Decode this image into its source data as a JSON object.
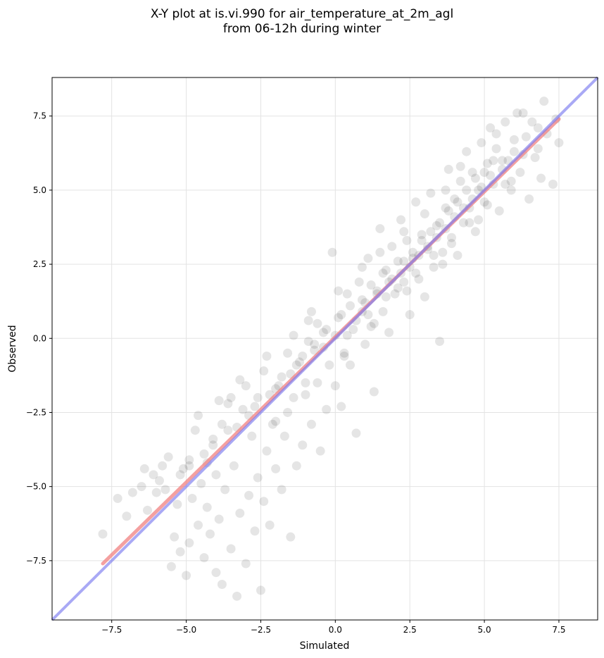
{
  "chart_data": {
    "type": "scatter",
    "title_line1": "X-Y plot at is.vi.990 for air_temperature_at_2m_agl",
    "title_line2": "from 06-12h during winter",
    "xlabel": "Simulated",
    "ylabel": "Observed",
    "xlim": [
      -9.5,
      8.8
    ],
    "ylim": [
      -9.5,
      8.8
    ],
    "xticks": [
      -7.5,
      -5.0,
      -2.5,
      0.0,
      2.5,
      5.0,
      7.5
    ],
    "yticks": [
      -7.5,
      -5.0,
      -2.5,
      0.0,
      2.5,
      5.0,
      7.5
    ],
    "xtick_labels": [
      "−7.5",
      "−5.0",
      "−2.5",
      "0.0",
      "2.5",
      "5.0",
      "7.5"
    ],
    "ytick_labels": [
      "−7.5",
      "−5.0",
      "−2.5",
      "0.0",
      "2.5",
      "5.0",
      "7.5"
    ],
    "grid": true,
    "colors": {
      "points": "#000000",
      "fit_line": "#f08080",
      "identity_line": "#7b7bf0"
    },
    "fit_line": {
      "x": [
        -7.8,
        7.5
      ],
      "y": [
        -7.6,
        7.4
      ]
    },
    "identity_line": {
      "x": [
        -9.5,
        8.8
      ],
      "y": [
        -9.5,
        8.8
      ]
    },
    "points": [
      [
        -7.8,
        -6.6
      ],
      [
        -7.3,
        -5.4
      ],
      [
        -7.0,
        -6.0
      ],
      [
        -6.8,
        -5.2
      ],
      [
        -6.5,
        -5.0
      ],
      [
        -6.4,
        -4.4
      ],
      [
        -6.3,
        -5.8
      ],
      [
        -6.0,
        -5.2
      ],
      [
        -5.9,
        -4.8
      ],
      [
        -5.8,
        -4.3
      ],
      [
        -5.7,
        -5.1
      ],
      [
        -5.6,
        -4.0
      ],
      [
        -5.5,
        -7.7
      ],
      [
        -5.4,
        -6.7
      ],
      [
        -5.3,
        -5.6
      ],
      [
        -5.2,
        -7.2
      ],
      [
        -5.1,
        -4.4
      ],
      [
        -5.0,
        -8.0
      ],
      [
        -4.9,
        -4.1
      ],
      [
        -4.9,
        -6.9
      ],
      [
        -4.8,
        -5.4
      ],
      [
        -4.7,
        -3.1
      ],
      [
        -4.6,
        -6.3
      ],
      [
        -4.5,
        -4.9
      ],
      [
        -4.4,
        -7.4
      ],
      [
        -4.3,
        -4.2
      ],
      [
        -4.3,
        -5.7
      ],
      [
        -4.2,
        -6.6
      ],
      [
        -4.1,
        -3.6
      ],
      [
        -4.0,
        -7.9
      ],
      [
        -4.0,
        -4.6
      ],
      [
        -3.9,
        -6.1
      ],
      [
        -3.8,
        -8.3
      ],
      [
        -3.7,
        -5.1
      ],
      [
        -3.6,
        -3.1
      ],
      [
        -3.5,
        -7.1
      ],
      [
        -3.4,
        -4.3
      ],
      [
        -3.3,
        -8.7
      ],
      [
        -3.2,
        -5.9
      ],
      [
        -3.1,
        -2.4
      ],
      [
        -3.0,
        -7.6
      ],
      [
        -2.9,
        -5.3
      ],
      [
        -2.8,
        -3.3
      ],
      [
        -2.7,
        -6.5
      ],
      [
        -2.6,
        -4.7
      ],
      [
        -2.5,
        -8.5
      ],
      [
        -2.4,
        -5.5
      ],
      [
        -2.3,
        -3.8
      ],
      [
        -2.2,
        -6.3
      ],
      [
        -2.1,
        -2.9
      ],
      [
        -2.0,
        -4.4
      ],
      [
        -1.9,
        -1.6
      ],
      [
        -1.8,
        -5.1
      ],
      [
        -1.7,
        -3.3
      ],
      [
        -1.6,
        -2.5
      ],
      [
        -1.5,
        -6.7
      ],
      [
        -1.4,
        -2.0
      ],
      [
        -1.3,
        -4.3
      ],
      [
        -1.2,
        -0.8
      ],
      [
        -1.1,
        -3.6
      ],
      [
        -1.0,
        -1.9
      ],
      [
        -0.9,
        0.6
      ],
      [
        -0.8,
        -2.9
      ],
      [
        -0.7,
        -0.4
      ],
      [
        -0.6,
        -1.5
      ],
      [
        -0.5,
        -3.8
      ],
      [
        -0.4,
        0.2
      ],
      [
        -0.3,
        -2.4
      ],
      [
        -0.2,
        -0.9
      ],
      [
        -0.1,
        2.9
      ],
      [
        0.0,
        -1.6
      ],
      [
        0.1,
        0.7
      ],
      [
        0.2,
        -2.3
      ],
      [
        0.3,
        -0.5
      ],
      [
        0.4,
        1.5
      ],
      [
        0.5,
        -0.9
      ],
      [
        0.6,
        0.3
      ],
      [
        0.7,
        -3.2
      ],
      [
        0.8,
        1.9
      ],
      [
        0.9,
        0.9
      ],
      [
        1.0,
        -0.2
      ],
      [
        1.1,
        2.7
      ],
      [
        1.2,
        0.4
      ],
      [
        1.3,
        -1.8
      ],
      [
        1.4,
        1.6
      ],
      [
        1.5,
        3.7
      ],
      [
        1.6,
        0.9
      ],
      [
        1.7,
        2.3
      ],
      [
        1.8,
        0.2
      ],
      [
        1.9,
        3.1
      ],
      [
        2.0,
        1.5
      ],
      [
        2.1,
        2.6
      ],
      [
        2.2,
        4.0
      ],
      [
        2.3,
        1.9
      ],
      [
        2.4,
        3.3
      ],
      [
        2.5,
        0.8
      ],
      [
        2.6,
        2.7
      ],
      [
        2.7,
        4.6
      ],
      [
        2.8,
        2.0
      ],
      [
        2.9,
        3.5
      ],
      [
        3.0,
        1.4
      ],
      [
        3.1,
        3.1
      ],
      [
        3.2,
        4.9
      ],
      [
        3.3,
        2.4
      ],
      [
        3.4,
        3.8
      ],
      [
        3.5,
        -0.1
      ],
      [
        3.6,
        2.9
      ],
      [
        3.7,
        4.4
      ],
      [
        3.8,
        5.7
      ],
      [
        3.9,
        3.4
      ],
      [
        4.0,
        4.7
      ],
      [
        4.1,
        2.8
      ],
      [
        4.2,
        5.3
      ],
      [
        4.3,
        3.9
      ],
      [
        4.4,
        6.3
      ],
      [
        4.5,
        4.4
      ],
      [
        4.6,
        5.6
      ],
      [
        4.7,
        3.6
      ],
      [
        4.8,
        5.0
      ],
      [
        4.9,
        6.6
      ],
      [
        5.0,
        4.6
      ],
      [
        5.1,
        5.9
      ],
      [
        5.2,
        7.1
      ],
      [
        5.3,
        5.2
      ],
      [
        5.4,
        6.4
      ],
      [
        5.5,
        4.3
      ],
      [
        5.6,
        5.7
      ],
      [
        5.7,
        7.3
      ],
      [
        5.8,
        6.0
      ],
      [
        5.9,
        5.0
      ],
      [
        6.0,
        6.7
      ],
      [
        6.1,
        7.6
      ],
      [
        6.3,
        6.2
      ],
      [
        6.5,
        4.7
      ],
      [
        6.6,
        7.3
      ],
      [
        6.8,
        6.4
      ],
      [
        6.9,
        5.4
      ],
      [
        7.0,
        8.0
      ],
      [
        7.1,
        6.9
      ],
      [
        7.3,
        5.2
      ],
      [
        7.5,
        6.6
      ],
      [
        7.4,
        7.4
      ],
      [
        -3.5,
        -2.0
      ],
      [
        -3.2,
        -1.4
      ],
      [
        -2.9,
        -2.6
      ],
      [
        -3.6,
        -2.2
      ],
      [
        -2.4,
        -1.1
      ],
      [
        -2.0,
        -1.7
      ],
      [
        -1.6,
        -0.5
      ],
      [
        -1.3,
        -0.9
      ],
      [
        -0.9,
        -0.1
      ],
      [
        -0.6,
        0.5
      ],
      [
        -0.3,
        0.3
      ],
      [
        0.2,
        0.8
      ],
      [
        0.5,
        1.1
      ],
      [
        0.9,
        1.3
      ],
      [
        1.2,
        1.8
      ],
      [
        1.6,
        2.2
      ],
      [
        1.9,
        2.0
      ],
      [
        2.3,
        2.6
      ],
      [
        2.6,
        2.9
      ],
      [
        2.9,
        3.3
      ],
      [
        3.2,
        3.6
      ],
      [
        3.5,
        3.9
      ],
      [
        3.8,
        4.3
      ],
      [
        4.1,
        4.6
      ],
      [
        4.4,
        5.0
      ],
      [
        4.7,
        5.4
      ],
      [
        5.0,
        5.6
      ],
      [
        5.3,
        6.0
      ],
      [
        -4.4,
        -3.9
      ],
      [
        -4.1,
        -3.4
      ],
      [
        -3.8,
        -2.9
      ],
      [
        -2.7,
        -2.3
      ],
      [
        -2.2,
        -1.9
      ],
      [
        -1.8,
        -1.3
      ],
      [
        -1.1,
        -0.6
      ],
      [
        -0.7,
        -0.2
      ],
      [
        0.0,
        0.1
      ],
      [
        0.7,
        0.6
      ],
      [
        1.0,
        1.2
      ],
      [
        1.4,
        1.5
      ],
      [
        1.8,
        1.9
      ],
      [
        2.2,
        2.2
      ],
      [
        2.5,
        2.4
      ],
      [
        2.8,
        2.8
      ],
      [
        3.1,
        3.0
      ],
      [
        3.4,
        3.4
      ],
      [
        3.7,
        3.7
      ],
      [
        4.0,
        4.1
      ],
      [
        4.3,
        4.4
      ],
      [
        4.6,
        4.7
      ],
      [
        4.9,
        5.1
      ],
      [
        5.2,
        5.5
      ],
      [
        5.6,
        6.0
      ],
      [
        6.0,
        6.3
      ],
      [
        6.4,
        6.8
      ],
      [
        6.8,
        7.1
      ],
      [
        -5.2,
        -4.6
      ],
      [
        -4.9,
        -4.3
      ],
      [
        -3.3,
        -3.0
      ],
      [
        -2.6,
        -2.0
      ],
      [
        -1.5,
        -1.2
      ],
      [
        -0.4,
        -0.3
      ],
      [
        0.4,
        0.1
      ],
      [
        1.1,
        0.8
      ],
      [
        1.7,
        1.4
      ],
      [
        2.1,
        1.7
      ],
      [
        2.7,
        2.2
      ],
      [
        3.3,
        2.8
      ],
      [
        3.9,
        3.2
      ],
      [
        4.5,
        3.9
      ],
      [
        5.1,
        4.5
      ],
      [
        5.7,
        5.2
      ],
      [
        6.2,
        5.6
      ],
      [
        -2.0,
        -2.8
      ],
      [
        -1.0,
        -1.5
      ],
      [
        0.3,
        -0.6
      ],
      [
        1.3,
        0.5
      ],
      [
        2.4,
        1.6
      ],
      [
        3.6,
        2.5
      ],
      [
        4.8,
        4.0
      ],
      [
        5.9,
        5.3
      ],
      [
        6.7,
        6.1
      ],
      [
        -4.6,
        -2.6
      ],
      [
        -3.9,
        -2.1
      ],
      [
        -3.0,
        -1.6
      ],
      [
        -2.3,
        -0.6
      ],
      [
        -1.4,
        0.1
      ],
      [
        -0.8,
        0.9
      ],
      [
        0.1,
        1.6
      ],
      [
        0.9,
        2.4
      ],
      [
        1.5,
        2.9
      ],
      [
        2.3,
        3.6
      ],
      [
        3.0,
        4.2
      ],
      [
        3.7,
        5.0
      ],
      [
        4.2,
        5.8
      ],
      [
        5.4,
        6.9
      ],
      [
        6.3,
        7.6
      ],
      [
        -6.1,
        -4.6
      ]
    ]
  }
}
